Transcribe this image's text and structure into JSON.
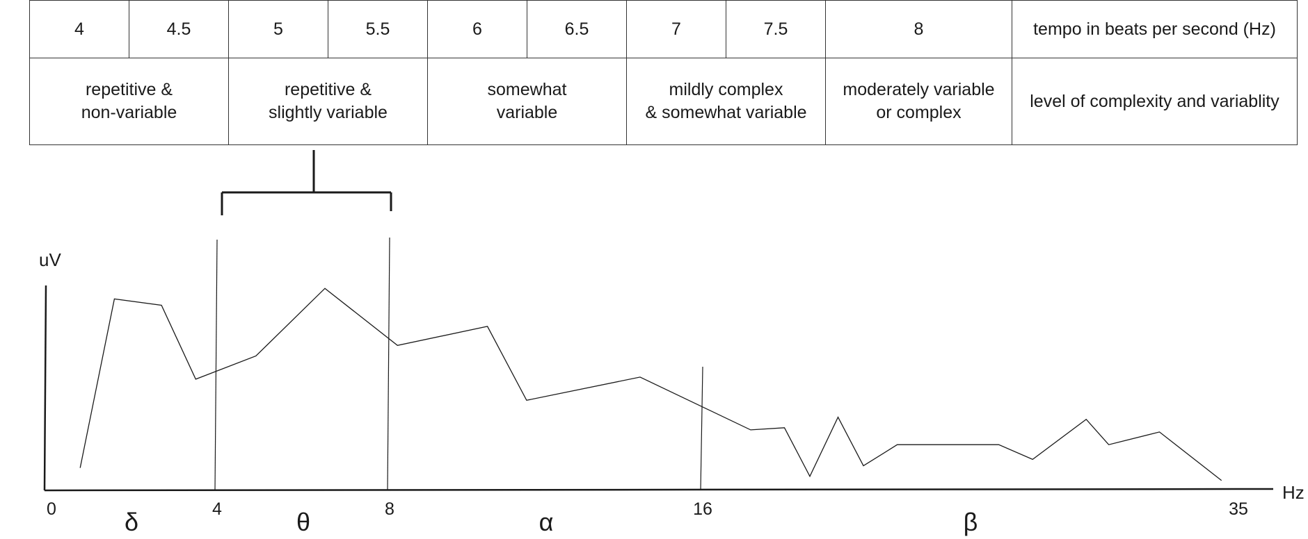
{
  "table": {
    "tempo_values": [
      "4",
      "4.5",
      "5",
      "5.5",
      "6",
      "6.5",
      "7",
      "7.5",
      "8"
    ],
    "tempo_header": "tempo in beats per second (Hz)",
    "complexity_levels": [
      "repetitive &\nnon-variable",
      "repetitive &\nslightly variable",
      "somewhat\nvariable",
      "mildly complex\n& somewhat variable",
      "moderately variable\nor complex"
    ],
    "complexity_header": "level of complexity and variablity"
  },
  "chart_data": {
    "type": "line",
    "ylabel": "uV",
    "xlabel": "Hz",
    "x_ticks": [
      "0",
      "4",
      "8",
      "16",
      "35"
    ],
    "bands": [
      {
        "symbol": "δ",
        "from": 0,
        "to": 4
      },
      {
        "symbol": "θ",
        "from": 4,
        "to": 8
      },
      {
        "symbol": "α",
        "from": 8,
        "to": 16
      },
      {
        "symbol": "β",
        "from": 16,
        "to": 35
      }
    ],
    "band_boundaries": [
      4,
      8,
      16
    ],
    "series": [
      {
        "x": [
          0.8,
          1.6,
          2.7,
          3.5,
          4.9,
          6.5,
          8.2,
          10.5,
          11.5,
          14.4,
          17.7,
          18.9,
          19.8,
          20.8,
          21.7,
          22.9,
          26.5,
          27.7,
          29.6,
          30.4,
          32.2,
          34.4
        ],
        "y": [
          0.1,
          0.9,
          0.87,
          0.52,
          0.63,
          0.95,
          0.68,
          0.77,
          0.42,
          0.53,
          0.28,
          0.29,
          0.06,
          0.34,
          0.11,
          0.21,
          0.21,
          0.14,
          0.33,
          0.21,
          0.27,
          0.04
        ]
      }
    ]
  }
}
